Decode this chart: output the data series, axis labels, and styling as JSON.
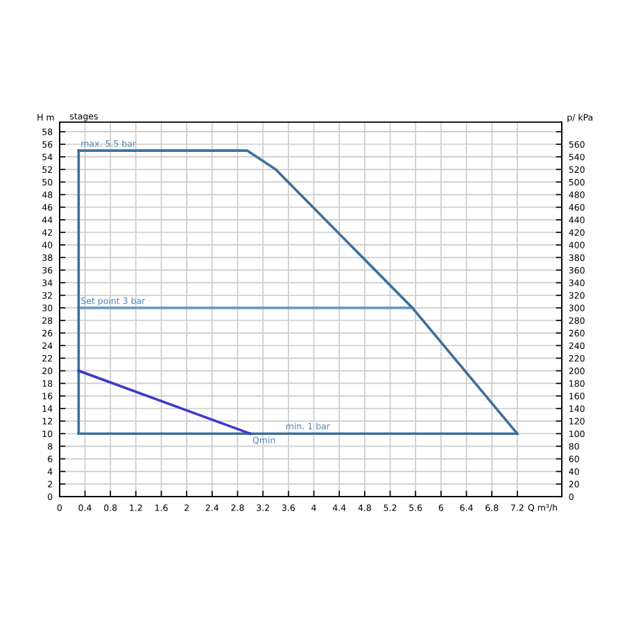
{
  "chart_data": {
    "type": "line",
    "xlabel": "Q m³/h",
    "ylabel": "H m",
    "y2label": "p/ kPa",
    "annotations": [
      "stages",
      "max. 5.5 bar",
      "Set point 3 bar",
      "min. 1 bar",
      "Qmin"
    ],
    "series": [
      {
        "x": [
          0.3,
          5.55
        ],
        "values": [
          30,
          30
        ],
        "color": "#6a9cc0"
      },
      {
        "x": [
          0.3,
          2.95,
          3.4,
          5.55,
          7.2
        ],
        "values": [
          55,
          55,
          52,
          30,
          10
        ],
        "color": "#3d6f9a"
      },
      {
        "x": [
          0.3,
          7.2
        ],
        "values": [
          10,
          10
        ],
        "color": "#3d6f9a"
      },
      {
        "x": [
          0.3,
          0.3
        ],
        "values": [
          10,
          55
        ],
        "color": "#3d6f9a"
      },
      {
        "x": [
          0.3,
          3.0
        ],
        "values": [
          20,
          10
        ],
        "color": "#3a3ac8"
      }
    ],
    "xlim": [
      0,
      7.9
    ],
    "ylim": [
      0,
      59.5
    ],
    "y2lim": [
      0,
      595
    ],
    "xticks": [
      0,
      0.4,
      0.8,
      1.2,
      1.6,
      2,
      2.4,
      2.8,
      3.2,
      3.6,
      4,
      4.4,
      4.8,
      5.2,
      5.6,
      6,
      6.4,
      6.8,
      7.2
    ],
    "yticks": [
      0,
      2,
      4,
      6,
      8,
      10,
      12,
      14,
      16,
      18,
      20,
      22,
      24,
      26,
      28,
      30,
      32,
      34,
      36,
      38,
      40,
      42,
      44,
      46,
      48,
      50,
      52,
      54,
      56,
      58
    ],
    "y2ticks": [
      0,
      20,
      40,
      60,
      80,
      100,
      120,
      140,
      160,
      180,
      200,
      220,
      240,
      260,
      280,
      300,
      320,
      340,
      360,
      380,
      400,
      420,
      440,
      460,
      480,
      500,
      520,
      540,
      560,
      {
        "value": 580,
        "label": null
      }
    ],
    "grid": true,
    "marker": "none",
    "line_style": "solid"
  }
}
